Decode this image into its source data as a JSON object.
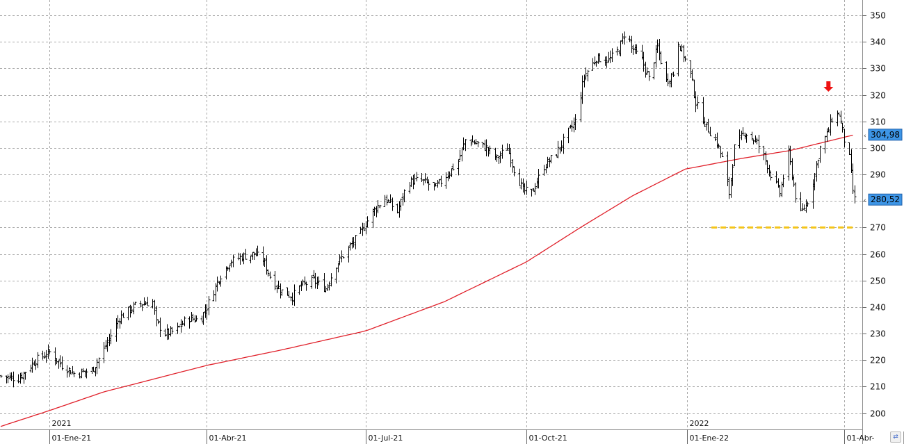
{
  "chart_data": {
    "type": "ohlc",
    "title": "",
    "xlabel": "",
    "ylabel": "",
    "ylim": [
      195,
      355
    ],
    "y_ticks": [
      200,
      210,
      220,
      230,
      240,
      250,
      260,
      270,
      280,
      290,
      300,
      310,
      320,
      330,
      340,
      350
    ],
    "x_range": [
      "2020-12-04",
      "2022-04-07"
    ],
    "x_ticks": [
      {
        "date": "2021-01-01",
        "label": "01-Ene-21",
        "year": "2021"
      },
      {
        "date": "2021-04-01",
        "label": "01-Abr-21",
        "year": ""
      },
      {
        "date": "2021-07-01",
        "label": "01-Jul-21",
        "year": ""
      },
      {
        "date": "2021-10-01",
        "label": "01-Oct-21",
        "year": ""
      },
      {
        "date": "2022-01-01",
        "label": "01-Ene-22",
        "year": "2022"
      },
      {
        "date": "2022-04-01",
        "label": "01-Abr-",
        "year": ""
      }
    ],
    "grid": true,
    "price_labels": [
      {
        "value": 304.98,
        "text": "304,98",
        "color": "#3d95e6"
      },
      {
        "value": 280.52,
        "text": "280,52",
        "color": "#3d95e6"
      }
    ],
    "price_close_path": [
      [
        "2020-12-04",
        214
      ],
      [
        "2020-12-14",
        213
      ],
      [
        "2020-12-24",
        220
      ],
      [
        "2021-01-01",
        223
      ],
      [
        "2021-01-08",
        218
      ],
      [
        "2021-01-15",
        215
      ],
      [
        "2021-01-25",
        216
      ],
      [
        "2021-02-01",
        224
      ],
      [
        "2021-02-10",
        236
      ],
      [
        "2021-02-20",
        241
      ],
      [
        "2021-03-01",
        242
      ],
      [
        "2021-03-03",
        234
      ],
      [
        "2021-03-08",
        230
      ],
      [
        "2021-03-14",
        231
      ],
      [
        "2021-03-21",
        236
      ],
      [
        "2021-03-28",
        235
      ],
      [
        "2021-04-01",
        240
      ],
      [
        "2021-04-08",
        251
      ],
      [
        "2021-04-14",
        257
      ],
      [
        "2021-04-21",
        259
      ],
      [
        "2021-04-28",
        260
      ],
      [
        "2021-05-03",
        258
      ],
      [
        "2021-05-08",
        250
      ],
      [
        "2021-05-14",
        246
      ],
      [
        "2021-05-20",
        244
      ],
      [
        "2021-05-25",
        248
      ],
      [
        "2021-06-01",
        250
      ],
      [
        "2021-06-08",
        247
      ],
      [
        "2021-06-14",
        256
      ],
      [
        "2021-06-21",
        262
      ],
      [
        "2021-06-28",
        268
      ],
      [
        "2021-07-05",
        276
      ],
      [
        "2021-07-12",
        281
      ],
      [
        "2021-07-19",
        276
      ],
      [
        "2021-07-25",
        287
      ],
      [
        "2021-08-01",
        288
      ],
      [
        "2021-08-10",
        285
      ],
      [
        "2021-08-18",
        291
      ],
      [
        "2021-08-23",
        295
      ],
      [
        "2021-08-27",
        303
      ],
      [
        "2021-09-01",
        302
      ],
      [
        "2021-09-08",
        300
      ],
      [
        "2021-09-14",
        296
      ],
      [
        "2021-09-20",
        300
      ],
      [
        "2021-09-24",
        292
      ],
      [
        "2021-09-29",
        284
      ],
      [
        "2021-10-04",
        283
      ],
      [
        "2021-10-11",
        293
      ],
      [
        "2021-10-18",
        298
      ],
      [
        "2021-10-25",
        306
      ],
      [
        "2021-10-29",
        310
      ],
      [
        "2021-11-03",
        327
      ],
      [
        "2021-11-10",
        334
      ],
      [
        "2021-11-17",
        333
      ],
      [
        "2021-11-23",
        337
      ],
      [
        "2021-11-27",
        345
      ],
      [
        "2021-11-30",
        338
      ],
      [
        "2021-12-06",
        333
      ],
      [
        "2021-12-10",
        326
      ],
      [
        "2021-12-15",
        338
      ],
      [
        "2021-12-20",
        325
      ],
      [
        "2021-12-24",
        328
      ],
      [
        "2021-12-27",
        340
      ],
      [
        "2022-01-03",
        328
      ],
      [
        "2022-01-06",
        317
      ],
      [
        "2022-01-12",
        308
      ],
      [
        "2022-01-18",
        302
      ],
      [
        "2022-01-21",
        296
      ],
      [
        "2022-01-25",
        283
      ],
      [
        "2022-01-28",
        300
      ],
      [
        "2022-02-03",
        306
      ],
      [
        "2022-02-10",
        302
      ],
      [
        "2022-02-14",
        297
      ],
      [
        "2022-02-18",
        290
      ],
      [
        "2022-02-23",
        283
      ],
      [
        "2022-02-28",
        298
      ],
      [
        "2022-03-04",
        282
      ],
      [
        "2022-03-07",
        275
      ],
      [
        "2022-03-11",
        280
      ],
      [
        "2022-03-15",
        290
      ],
      [
        "2022-03-18",
        300
      ],
      [
        "2022-03-22",
        305
      ],
      [
        "2022-03-25",
        311
      ],
      [
        "2022-03-29",
        313
      ],
      [
        "2022-04-01",
        303
      ],
      [
        "2022-04-04",
        296
      ],
      [
        "2022-04-06",
        284
      ],
      [
        "2022-04-07",
        280.52
      ]
    ],
    "moving_average": {
      "color": "#e0202a",
      "points": [
        [
          "2020-12-04",
          195
        ],
        [
          "2021-01-01",
          201
        ],
        [
          "2021-02-01",
          208
        ],
        [
          "2021-04-01",
          218
        ],
        [
          "2021-05-15",
          224
        ],
        [
          "2021-07-01",
          231
        ],
        [
          "2021-08-15",
          242
        ],
        [
          "2021-10-01",
          257
        ],
        [
          "2021-11-01",
          270
        ],
        [
          "2021-12-01",
          282
        ],
        [
          "2021-12-31",
          292
        ],
        [
          "2022-02-01",
          296
        ],
        [
          "2022-03-01",
          299
        ],
        [
          "2022-04-07",
          304.98
        ]
      ]
    },
    "support_line": {
      "value": 270,
      "from": "2022-01-15",
      "to": "2022-04-07",
      "color": "#f5c518"
    },
    "arrow_marker": {
      "date": "2022-03-23",
      "value": 323,
      "color": "#ee1111"
    }
  }
}
